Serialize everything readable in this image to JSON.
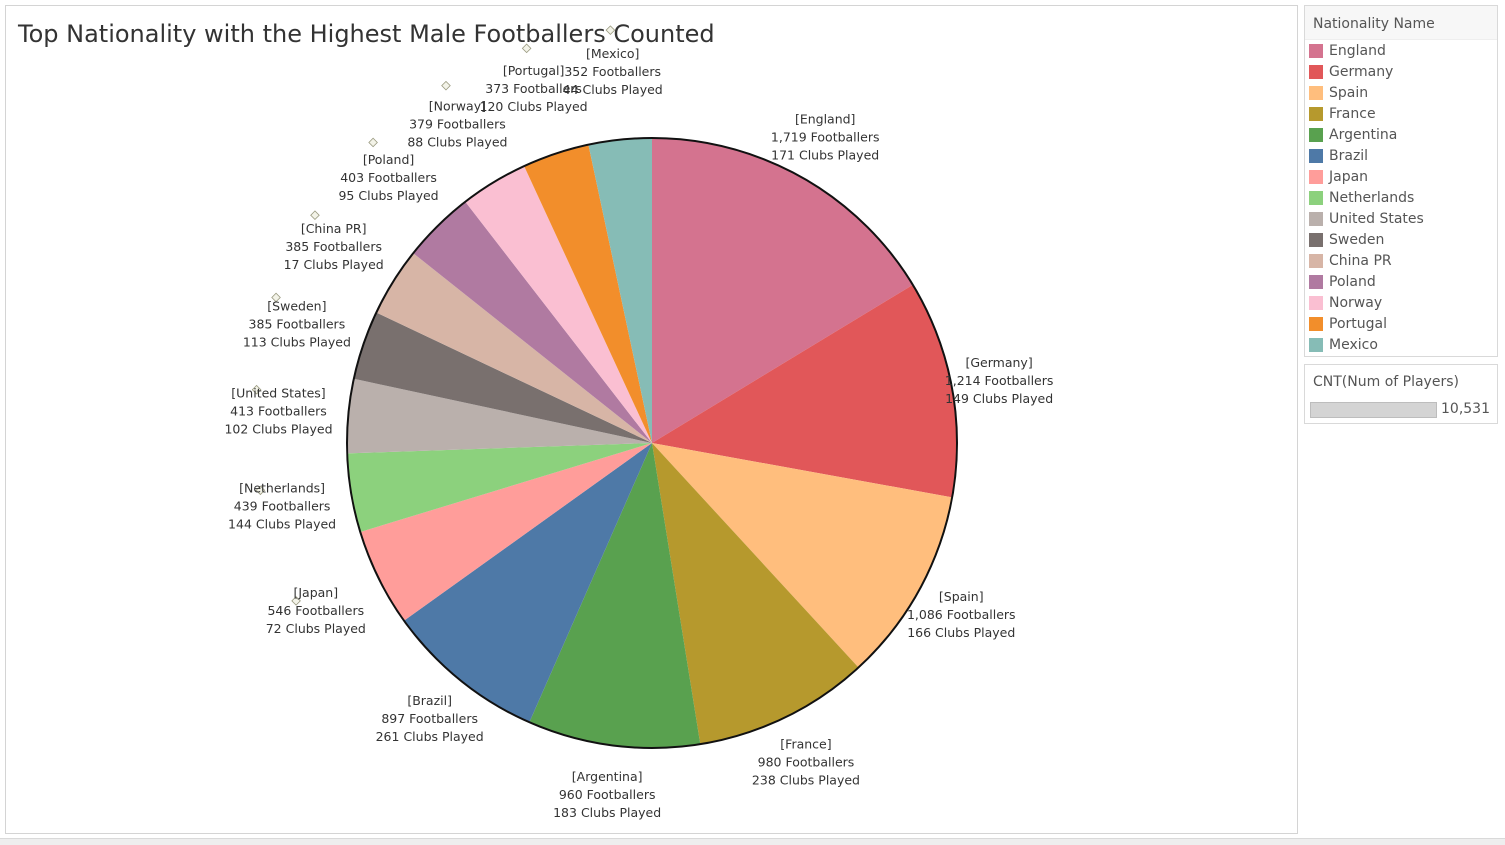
{
  "title": "Top Nationality with the Highest Male Footballers Counted",
  "legend": {
    "title": "Nationality Name",
    "items": [
      {
        "label": "England",
        "color": "#d4738f"
      },
      {
        "label": "Germany",
        "color": "#e15759"
      },
      {
        "label": "Spain",
        "color": "#ffbe7d"
      },
      {
        "label": "France",
        "color": "#b6992d"
      },
      {
        "label": "Argentina",
        "color": "#59a14f"
      },
      {
        "label": "Brazil",
        "color": "#4e79a7"
      },
      {
        "label": "Japan",
        "color": "#ff9d9a"
      },
      {
        "label": "Netherlands",
        "color": "#8cd17d"
      },
      {
        "label": "United States",
        "color": "#bab0ac"
      },
      {
        "label": "Sweden",
        "color": "#79706e"
      },
      {
        "label": "China PR",
        "color": "#d7b5a6"
      },
      {
        "label": "Poland",
        "color": "#b07aa1"
      },
      {
        "label": "Norway",
        "color": "#fabfd2"
      },
      {
        "label": "Portugal",
        "color": "#f28e2b"
      },
      {
        "label": "Mexico",
        "color": "#86bcb6"
      }
    ]
  },
  "size_legend": {
    "title": "CNT(Num of Players)",
    "value_label": "10,531"
  },
  "chart_data": {
    "type": "pie",
    "title": "Top Nationality with the Highest Male Footballers Counted",
    "slices": [
      {
        "name": "England",
        "footballers": 1719,
        "footballers_label": "1,719",
        "clubs": 171,
        "color": "#d4738f"
      },
      {
        "name": "Germany",
        "footballers": 1214,
        "footballers_label": "1,214",
        "clubs": 149,
        "color": "#e15759"
      },
      {
        "name": "Spain",
        "footballers": 1086,
        "footballers_label": "1,086",
        "clubs": 166,
        "color": "#ffbe7d"
      },
      {
        "name": "France",
        "footballers": 980,
        "footballers_label": "980",
        "clubs": 238,
        "color": "#b6992d"
      },
      {
        "name": "Argentina",
        "footballers": 960,
        "footballers_label": "960",
        "clubs": 183,
        "color": "#59a14f"
      },
      {
        "name": "Brazil",
        "footballers": 897,
        "footballers_label": "897",
        "clubs": 261,
        "color": "#4e79a7"
      },
      {
        "name": "Japan",
        "footballers": 546,
        "footballers_label": "546",
        "clubs": 72,
        "color": "#ff9d9a"
      },
      {
        "name": "Netherlands",
        "footballers": 439,
        "footballers_label": "439",
        "clubs": 144,
        "color": "#8cd17d"
      },
      {
        "name": "United States",
        "footballers": 413,
        "footballers_label": "413",
        "clubs": 102,
        "color": "#bab0ac"
      },
      {
        "name": "Sweden",
        "footballers": 385,
        "footballers_label": "385",
        "clubs": 113,
        "color": "#79706e"
      },
      {
        "name": "China PR",
        "footballers": 385,
        "footballers_label": "385",
        "clubs": 17,
        "color": "#d7b5a6"
      },
      {
        "name": "Poland",
        "footballers": 403,
        "footballers_label": "403",
        "clubs": 95,
        "color": "#b07aa1"
      },
      {
        "name": "Norway",
        "footballers": 379,
        "footballers_label": "379",
        "clubs": 88,
        "color": "#fabfd2"
      },
      {
        "name": "Portugal",
        "footballers": 373,
        "footballers_label": "373",
        "clubs": 120,
        "color": "#f28e2b"
      },
      {
        "name": "Mexico",
        "footballers": 352,
        "footballers_label": "352",
        "clubs": 44,
        "color": "#86bcb6"
      }
    ],
    "footballers_suffix": "Footballers",
    "clubs_suffix": "Clubs Played"
  }
}
